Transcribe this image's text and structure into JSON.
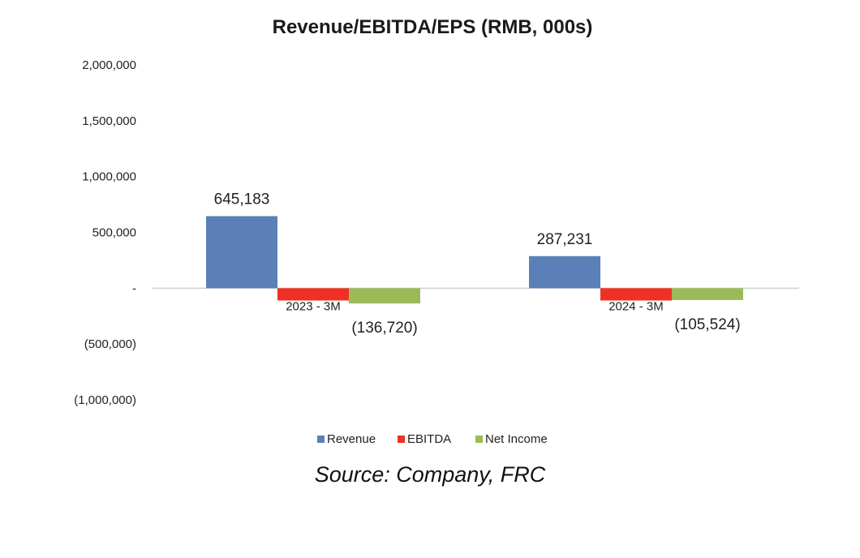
{
  "chart_data": {
    "type": "bar",
    "title": "Revenue/EBITDA/EPS (RMB, 000s)",
    "xlabel": "",
    "ylabel": "",
    "categories": [
      "2023 - 3M",
      "2024 - 3M"
    ],
    "series": [
      {
        "name": "Revenue",
        "color": "#5b80b8",
        "values": [
          645183,
          287231
        ]
      },
      {
        "name": "EBITDA",
        "color": "#ee3124",
        "values": [
          -110000,
          -110000
        ]
      },
      {
        "name": "Net Income",
        "color": "#9bbb59",
        "values": [
          -136720,
          -105524
        ]
      }
    ],
    "data_labels": [
      {
        "series": "Revenue",
        "category": "2023 - 3M",
        "text": "645,183"
      },
      {
        "series": "Revenue",
        "category": "2024 - 3M",
        "text": "287,231"
      },
      {
        "series": "Net Income",
        "category": "2023 - 3M",
        "text": "(136,720)"
      },
      {
        "series": "Net Income",
        "category": "2024 - 3M",
        "text": "(105,524)"
      }
    ],
    "yticks": [
      {
        "value": 2000000,
        "label": "2,000,000"
      },
      {
        "value": 1500000,
        "label": "1,500,000"
      },
      {
        "value": 1000000,
        "label": "1,000,000"
      },
      {
        "value": 500000,
        "label": "500,000"
      },
      {
        "value": 0,
        "label": "-"
      },
      {
        "value": -500000,
        "label": "(500,000)"
      },
      {
        "value": -1000000,
        "label": "(1,000,000)"
      }
    ],
    "ylim": [
      -1000000,
      2000000
    ],
    "grid": false,
    "legend": "bottom"
  },
  "source_text": "Source: Company, FRC"
}
